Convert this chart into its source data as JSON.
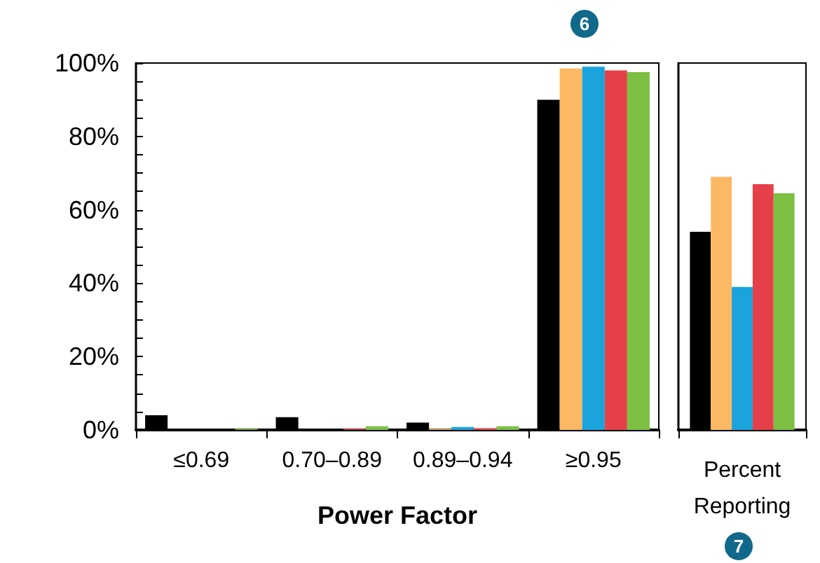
{
  "chart_data": [
    {
      "type": "bar",
      "xlabel": "Power Factor",
      "categories": [
        "≤0.69",
        "0.70–0.89",
        "0.89–0.94",
        "≥0.95"
      ],
      "series": [
        {
          "color": "#000000",
          "values": [
            4,
            3.5,
            2,
            90
          ]
        },
        {
          "color": "#fdb863",
          "values": [
            0,
            0,
            0.3,
            98.5
          ]
        },
        {
          "color": "#1aa3dc",
          "values": [
            0,
            0,
            0.8,
            99
          ]
        },
        {
          "color": "#e5404a",
          "values": [
            0,
            0.3,
            0.5,
            98
          ]
        },
        {
          "color": "#7cbf42",
          "values": [
            0.3,
            1,
            1,
            97.5
          ]
        }
      ],
      "ylim": [
        0,
        100
      ],
      "yticks": [
        {
          "value": 0,
          "label": "0%"
        },
        {
          "value": 5,
          "label": null
        },
        {
          "value": 10,
          "label": null
        },
        {
          "value": 15,
          "label": null
        },
        {
          "value": 20,
          "label": "20%"
        },
        {
          "value": 25,
          "label": null
        },
        {
          "value": 30,
          "label": null
        },
        {
          "value": 35,
          "label": null
        },
        {
          "value": 40,
          "label": "40%"
        },
        {
          "value": 45,
          "label": null
        },
        {
          "value": 50,
          "label": null
        },
        {
          "value": 55,
          "label": null
        },
        {
          "value": 60,
          "label": "60%"
        },
        {
          "value": 65,
          "label": null
        },
        {
          "value": 70,
          "label": null
        },
        {
          "value": 75,
          "label": null
        },
        {
          "value": 80,
          "label": "80%"
        },
        {
          "value": 85,
          "label": null
        },
        {
          "value": 90,
          "label": null
        },
        {
          "value": 95,
          "label": null
        },
        {
          "value": 100,
          "label": "100%"
        }
      ],
      "annotations": [
        "6"
      ]
    },
    {
      "type": "bar",
      "xlabel": "Percent Reporting",
      "categories": [
        null
      ],
      "series": [
        {
          "color": "#000000",
          "values": [
            54
          ]
        },
        {
          "color": "#fdb863",
          "values": [
            69
          ]
        },
        {
          "color": "#1aa3dc",
          "values": [
            39
          ]
        },
        {
          "color": "#e5404a",
          "values": [
            67
          ]
        },
        {
          "color": "#7cbf42",
          "values": [
            64.5
          ]
        }
      ],
      "ylim": [
        0,
        100
      ],
      "tick_labels": false,
      "annotations": [
        "7"
      ]
    }
  ]
}
